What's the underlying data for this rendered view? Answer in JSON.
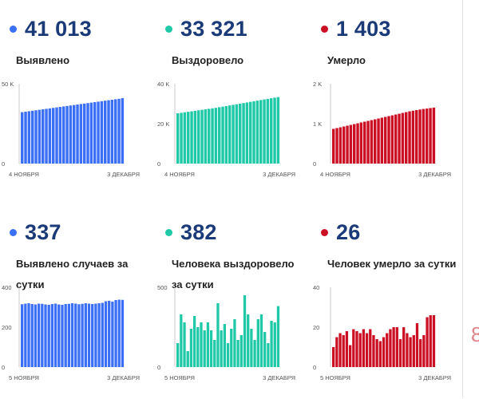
{
  "panels": [
    {
      "value": "41 013",
      "label": "Выявлено",
      "color": "#3b6ff5",
      "chart": {
        "y_ticks": [
          "50 K",
          "0"
        ],
        "x_start": "4 НОЯБРЯ",
        "x_end": "3 ДЕКАБРЯ"
      }
    },
    {
      "value": "33 321",
      "label": "Выздоровело",
      "color": "#1fc9a8",
      "chart": {
        "y_ticks": [
          "40 K",
          "20 K",
          "0"
        ],
        "x_start": "4 НОЯБРЯ",
        "x_end": "3 ДЕКАБРЯ"
      }
    },
    {
      "value": "1 403",
      "label": "Умерло",
      "color": "#cc1024",
      "chart": {
        "y_ticks": [
          "2 K",
          "1 K",
          "0"
        ],
        "x_start": "4 НОЯБРЯ",
        "x_end": "3 ДЕКАБРЯ"
      }
    },
    {
      "value": "337",
      "label": "Выявлено случаев за сутки",
      "color": "#3b6ff5",
      "chart": {
        "y_ticks": [
          "400",
          "200",
          "0"
        ],
        "x_start": "5 НОЯБРЯ",
        "x_end": "3 ДЕКАБРЯ"
      }
    },
    {
      "value": "382",
      "label": "Человека выздоровело за сутки",
      "color": "#1fc9a8",
      "chart": {
        "y_ticks": [
          "500",
          "0"
        ],
        "x_start": "5 НОЯБРЯ",
        "x_end": "3 ДЕКАБРЯ"
      }
    },
    {
      "value": "26",
      "label": "Человек умерло за сутки",
      "color": "#cc1024",
      "chart": {
        "y_ticks": [
          "40",
          "20",
          "0"
        ],
        "x_start": "5 НОЯБРЯ",
        "x_end": "3 ДЕКАБРЯ"
      }
    }
  ],
  "cut_off_text": "8",
  "chart_data": [
    {
      "type": "bar",
      "x_start": "4 НОЯБРЯ",
      "x_end": "3 ДЕКАБРЯ",
      "ylim": [
        0,
        50000
      ],
      "y_ticks": [
        0,
        50000
      ],
      "values": [
        32200,
        32500,
        32800,
        33100,
        33400,
        33700,
        34000,
        34300,
        34600,
        34900,
        35200,
        35500,
        35800,
        36100,
        36400,
        36700,
        37000,
        37300,
        37600,
        37900,
        38200,
        38500,
        38800,
        39100,
        39400,
        39700,
        40000,
        40300,
        40600,
        41013
      ]
    },
    {
      "type": "bar",
      "x_start": "4 НОЯБРЯ",
      "x_end": "3 ДЕКАБРЯ",
      "ylim": [
        0,
        40000
      ],
      "y_ticks": [
        0,
        20000,
        40000
      ],
      "values": [
        25200,
        25450,
        25700,
        25950,
        26200,
        26450,
        26700,
        26950,
        27200,
        27450,
        27700,
        27950,
        28250,
        28550,
        28850,
        29150,
        29450,
        29750,
        30050,
        30350,
        30650,
        30950,
        31250,
        31550,
        31850,
        32150,
        32450,
        32750,
        33050,
        33321
      ]
    },
    {
      "type": "bar",
      "x_start": "4 НОЯБРЯ",
      "x_end": "3 ДЕКАБРЯ",
      "ylim": [
        0,
        2000
      ],
      "y_ticks": [
        0,
        1000,
        2000
      ],
      "values": [
        870,
        890,
        910,
        930,
        950,
        970,
        990,
        1010,
        1030,
        1050,
        1070,
        1090,
        1110,
        1130,
        1150,
        1170,
        1190,
        1210,
        1230,
        1250,
        1270,
        1290,
        1310,
        1325,
        1340,
        1355,
        1370,
        1380,
        1392,
        1403
      ]
    },
    {
      "type": "bar",
      "x_start": "5 НОЯБРЯ",
      "x_end": "3 ДЕКАБРЯ",
      "ylim": [
        0,
        400
      ],
      "y_ticks": [
        0,
        200,
        400
      ],
      "values": [
        315,
        318,
        320,
        316,
        314,
        318,
        317,
        314,
        312,
        316,
        318,
        314,
        312,
        316,
        317,
        320,
        318,
        315,
        317,
        320,
        318,
        316,
        318,
        320,
        322,
        330,
        332,
        328,
        336,
        338,
        337
      ]
    },
    {
      "type": "bar",
      "x_start": "5 НОЯБРЯ",
      "x_end": "3 ДЕКАБРЯ",
      "ylim": [
        0,
        500
      ],
      "y_ticks": [
        0,
        500
      ],
      "values": [
        150,
        330,
        280,
        100,
        240,
        320,
        250,
        280,
        230,
        280,
        230,
        170,
        400,
        230,
        270,
        150,
        240,
        300,
        170,
        200,
        450,
        330,
        240,
        170,
        300,
        330,
        220,
        150,
        290,
        280,
        382
      ]
    },
    {
      "type": "bar",
      "x_start": "5 НОЯБРЯ",
      "x_end": "3 ДЕКАБРЯ",
      "ylim": [
        0,
        40
      ],
      "y_ticks": [
        0,
        20,
        40
      ],
      "values": [
        10,
        15,
        17,
        16,
        18,
        11,
        19,
        18,
        17,
        19,
        17,
        19,
        16,
        14,
        13,
        15,
        17,
        19,
        20,
        20,
        14,
        20,
        17,
        15,
        16,
        22,
        14,
        16,
        25,
        26,
        26
      ]
    }
  ]
}
